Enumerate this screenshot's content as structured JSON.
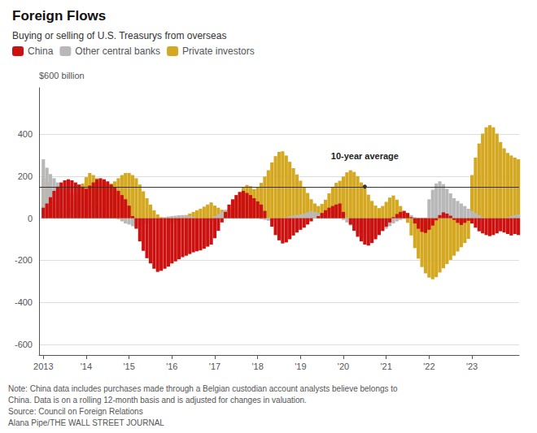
{
  "chart_data": {
    "type": "bar",
    "title": "Foreign Flows",
    "subtitle": "Buying or selling of U.S. Treasurys from overseas",
    "ylabel": "$600 billion",
    "notes": [
      "Note: China data includes purchases made through a Belgian custodian account analysts believe belongs to",
      "China. Data is on a rolling 12-month basis and is adjusted for changes in valuation.",
      "Source: Council on Foreign Relations",
      "Alana Pipe/THE WALL STREET JOURNAL"
    ],
    "stacked": true,
    "grid": true,
    "legend": "upper left",
    "annotation": {
      "text": "10-year average",
      "x": 2020.5,
      "y": 150
    },
    "xlim": [
      2012.9,
      2024.1
    ],
    "xticks": [
      2013,
      {
        "value": 2014,
        "label": "'14"
      },
      {
        "value": 2015,
        "label": "'15"
      },
      {
        "value": 2016,
        "label": "'16"
      },
      {
        "value": 2017,
        "label": "'17"
      },
      {
        "value": 2018,
        "label": "'18"
      },
      {
        "value": 2019,
        "label": "'19"
      },
      {
        "value": 2020,
        "label": "'20"
      },
      {
        "value": 2021,
        "label": "'21"
      },
      {
        "value": 2022,
        "label": "'22"
      },
      {
        "value": 2023,
        "label": "'23"
      }
    ],
    "ylim": [
      -650,
      620
    ],
    "yticks": [
      -600,
      -400,
      -200,
      0,
      200,
      400
    ],
    "x": [
      2013,
      2013.0833,
      2013.1667,
      2013.25,
      2013.3333,
      2013.4167,
      2013.5,
      2013.5833,
      2013.6667,
      2013.75,
      2013.8333,
      2013.9167,
      2014,
      2014.0833,
      2014.1667,
      2014.25,
      2014.3333,
      2014.4167,
      2014.5,
      2014.5833,
      2014.6667,
      2014.75,
      2014.8333,
      2014.9167,
      2015,
      2015.0833,
      2015.1667,
      2015.25,
      2015.3333,
      2015.4167,
      2015.5,
      2015.5833,
      2015.6667,
      2015.75,
      2015.8333,
      2015.9167,
      2016,
      2016.0833,
      2016.1667,
      2016.25,
      2016.3333,
      2016.4167,
      2016.5,
      2016.5833,
      2016.6667,
      2016.75,
      2016.8333,
      2016.9167,
      2017,
      2017.0833,
      2017.1667,
      2017.25,
      2017.3333,
      2017.4167,
      2017.5,
      2017.5833,
      2017.6667,
      2017.75,
      2017.8333,
      2017.9167,
      2018,
      2018.0833,
      2018.1667,
      2018.25,
      2018.3333,
      2018.4167,
      2018.5,
      2018.5833,
      2018.6667,
      2018.75,
      2018.8333,
      2018.9167,
      2019,
      2019.0833,
      2019.1667,
      2019.25,
      2019.3333,
      2019.4167,
      2019.5,
      2019.5833,
      2019.6667,
      2019.75,
      2019.8333,
      2019.9167,
      2020,
      2020.0833,
      2020.1667,
      2020.25,
      2020.3333,
      2020.4167,
      2020.5,
      2020.5833,
      2020.6667,
      2020.75,
      2020.8333,
      2020.9167,
      2021,
      2021.0833,
      2021.1667,
      2021.25,
      2021.3333,
      2021.4167,
      2021.5,
      2021.5833,
      2021.6667,
      2021.75,
      2021.8333,
      2021.9167,
      2022,
      2022.0833,
      2022.1667,
      2022.25,
      2022.3333,
      2022.4167,
      2022.5,
      2022.5833,
      2022.6667,
      2022.75,
      2022.8333,
      2022.9167,
      2023,
      2023.0833,
      2023.1667,
      2023.25,
      2023.3333,
      2023.4167,
      2023.5,
      2023.5833,
      2023.6667,
      2023.75,
      2023.8333,
      2023.9167,
      2024,
      2024.0833
    ],
    "series": [
      {
        "name": "China",
        "color": "#cc1111",
        "values": [
          50,
          70,
          100,
          130,
          150,
          170,
          180,
          185,
          180,
          170,
          160,
          150,
          140,
          155,
          170,
          185,
          190,
          185,
          175,
          160,
          145,
          130,
          110,
          90,
          60,
          10,
          -50,
          -110,
          -155,
          -190,
          -215,
          -240,
          -255,
          -250,
          -240,
          -230,
          -215,
          -205,
          -195,
          -185,
          -178,
          -170,
          -162,
          -157,
          -153,
          -145,
          -135,
          -125,
          -95,
          -60,
          -20,
          30,
          65,
          90,
          110,
          125,
          130,
          120,
          110,
          95,
          80,
          65,
          35,
          0,
          -40,
          -80,
          -105,
          -120,
          -115,
          -100,
          -82,
          -68,
          -55,
          -45,
          -30,
          -15,
          0,
          10,
          25,
          38,
          50,
          58,
          65,
          70,
          30,
          0,
          -30,
          -60,
          -88,
          -110,
          -125,
          -130,
          -118,
          -100,
          -80,
          -60,
          -40,
          -20,
          5,
          20,
          30,
          35,
          25,
          5,
          -25,
          -50,
          -65,
          -70,
          -55,
          -35,
          -10,
          15,
          28,
          22,
          12,
          -8,
          -22,
          -32,
          -22,
          -12,
          -25,
          -45,
          -62,
          -72,
          -80,
          -85,
          -80,
          -72,
          -62,
          -68,
          -75,
          -82,
          -75,
          -80
        ]
      },
      {
        "name": "Other central banks",
        "color": "#b8b8b8",
        "values": [
          280,
          240,
          210,
          190,
          170,
          150,
          140,
          130,
          120,
          110,
          100,
          90,
          80,
          70,
          60,
          50,
          40,
          30,
          20,
          10,
          0,
          -5,
          -15,
          -25,
          -30,
          -38,
          -42,
          -38,
          -32,
          -25,
          -18,
          -10,
          -5,
          0,
          5,
          8,
          10,
          12,
          14,
          15,
          13,
          10,
          7,
          3,
          0,
          -5,
          -10,
          -15,
          10,
          20,
          30,
          40,
          42,
          38,
          30,
          22,
          15,
          10,
          5,
          2,
          0,
          -5,
          -8,
          -12,
          -15,
          -10,
          -5,
          0,
          5,
          10,
          12,
          15,
          18,
          22,
          28,
          35,
          30,
          25,
          20,
          15,
          10,
          5,
          2,
          0,
          -8,
          -20,
          -35,
          -55,
          -72,
          -90,
          -100,
          -108,
          -100,
          -88,
          -75,
          -62,
          -50,
          -38,
          -25,
          -15,
          -8,
          -3,
          5,
          15,
          5,
          -8,
          -20,
          -30,
          90,
          135,
          165,
          175,
          162,
          140,
          118,
          95,
          82,
          70,
          58,
          45,
          35,
          25,
          15,
          5,
          0,
          -5,
          -8,
          -12,
          -6,
          0,
          5,
          10,
          15,
          18
        ]
      },
      {
        "name": "Private investors",
        "color": "#d4a820",
        "values": [
          190,
          170,
          140,
          80,
          40,
          20,
          30,
          50,
          80,
          110,
          140,
          165,
          195,
          215,
          205,
          190,
          175,
          165,
          160,
          165,
          175,
          190,
          205,
          215,
          215,
          205,
          190,
          160,
          128,
          95,
          65,
          38,
          18,
          5,
          -5,
          -15,
          -25,
          -15,
          -5,
          5,
          15,
          22,
          30,
          38,
          45,
          55,
          65,
          75,
          60,
          50,
          40,
          32,
          42,
          62,
          90,
          120,
          148,
          158,
          152,
          138,
          148,
          168,
          198,
          228,
          265,
          295,
          315,
          318,
          298,
          268,
          238,
          208,
          178,
          148,
          120,
          90,
          70,
          58,
          68,
          88,
          118,
          148,
          168,
          178,
          198,
          218,
          228,
          220,
          200,
          170,
          142,
          112,
          82,
          60,
          48,
          58,
          78,
          98,
          108,
          88,
          58,
          28,
          -22,
          -82,
          -142,
          -192,
          -232,
          -262,
          -282,
          -290,
          -280,
          -258,
          -238,
          -218,
          -198,
          -178,
          -158,
          -138,
          -118,
          -98,
          205,
          288,
          355,
          402,
          432,
          442,
          432,
          402,
          362,
          332,
          310,
          298,
          288,
          280
        ]
      }
    ]
  }
}
